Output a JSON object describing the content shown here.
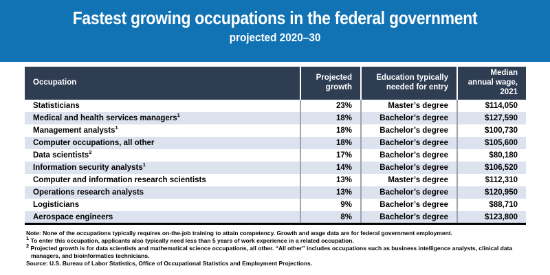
{
  "banner": {
    "title": "Fastest growing occupations in the federal government",
    "subtitle": "projected 2020–30"
  },
  "colors": {
    "banner_blue": "#1273b4",
    "header_navy": "#2f3d53",
    "row_stripe": "#dce2ee",
    "column_divider": "#9ca3ad",
    "table_bottom_rule": "#000000"
  },
  "chart_data": {
    "type": "table",
    "title": "Fastest growing occupations in the federal government",
    "subtitle": "projected 2020–30",
    "columns": [
      "Occupation",
      "Projected growth",
      "Education typically needed for entry",
      "Median annual wage, 2021"
    ],
    "rows": [
      {
        "occupation": "Statisticians",
        "growth": "23%",
        "education": "Master’s degree",
        "wage": "$114,050"
      },
      {
        "occupation": "Medical and health services managers",
        "sup": "1",
        "growth": "18%",
        "education": "Bachelor’s degree",
        "wage": "$127,590"
      },
      {
        "occupation": "Management analysts",
        "sup": "1",
        "growth": "18%",
        "education": "Bachelor’s degree",
        "wage": "$100,730"
      },
      {
        "occupation": "Computer occupations, all other",
        "growth": "18%",
        "education": "Bachelor’s degree",
        "wage": "$105,600"
      },
      {
        "occupation": "Data scientists",
        "sup": "2",
        "growth": "17%",
        "education": "Bachelor’s degree",
        "wage": "$80,180"
      },
      {
        "occupation": "Information security analysts",
        "sup": "1",
        "growth": "14%",
        "education": "Bachelor’s degree",
        "wage": "$106,520"
      },
      {
        "occupation": "Computer and information research scientists",
        "growth": "13%",
        "education": "Master’s degree",
        "wage": "$112,310"
      },
      {
        "occupation": "Operations research analysts",
        "growth": "13%",
        "education": "Bachelor’s degree",
        "wage": "$120,950"
      },
      {
        "occupation": "Logisticians",
        "growth": "9%",
        "education": "Bachelor’s degree",
        "wage": "$88,710"
      },
      {
        "occupation": "Aerospace engineers",
        "growth": "8%",
        "education": "Bachelor’s degree",
        "wage": "$123,800"
      }
    ]
  },
  "notes": [
    {
      "label": "Note:",
      "text": " None of the occupations typically requires on-the-job training to attain competency. Growth and wage data are for federal government employment."
    },
    {
      "sup": "1",
      "text": " To enter this occupation, applicants also typically need less than 5 years of work experience in a related occupation."
    },
    {
      "sup": "2",
      "text": " Projected growth is for data scientists and mathematical science occupations, all other. “All other” includes occupations such as business intelligence analysts, clinical data managers, and bioinformatics technicians."
    },
    {
      "label": "Source:",
      "text": " U.S. Bureau of Labor Statistics, Office of Occupational Statistics and Employment Projections."
    }
  ]
}
